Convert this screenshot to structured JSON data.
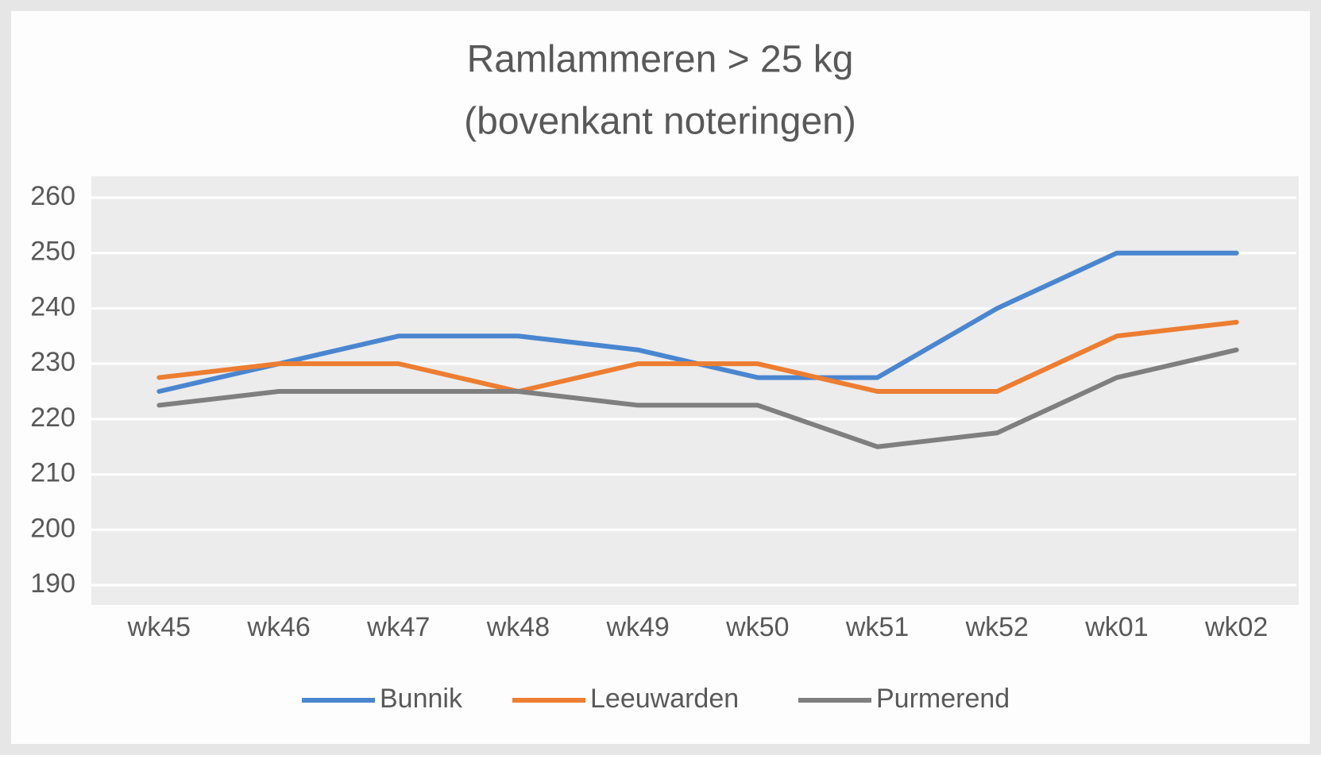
{
  "chart_data": {
    "type": "line",
    "title": [
      "Ramlammeren > 25 kg",
      "(bovenkant noteringen)"
    ],
    "categories": [
      "wk45",
      "wk46",
      "wk47",
      "wk48",
      "wk49",
      "wk50",
      "wk51",
      "wk52",
      "wk01",
      "wk02"
    ],
    "series": [
      {
        "name": "Bunnik",
        "color": "#4a86d0",
        "values": [
          225,
          230,
          235,
          235,
          232.5,
          227.5,
          227.5,
          240,
          250,
          250
        ]
      },
      {
        "name": "Leeuwarden",
        "color": "#ed7d31",
        "values": [
          227.5,
          230,
          230,
          225,
          230,
          230,
          225,
          225,
          235,
          237.5
        ]
      },
      {
        "name": "Purmerend",
        "color": "#7f7f7f",
        "values": [
          222.5,
          225,
          225,
          225,
          222.5,
          222.5,
          215,
          217.5,
          227.5,
          232.5
        ]
      }
    ],
    "ylim": [
      190,
      260
    ],
    "yticks": [
      190,
      200,
      210,
      220,
      230,
      240,
      250,
      260
    ],
    "grid": true,
    "legend": "bottom"
  }
}
